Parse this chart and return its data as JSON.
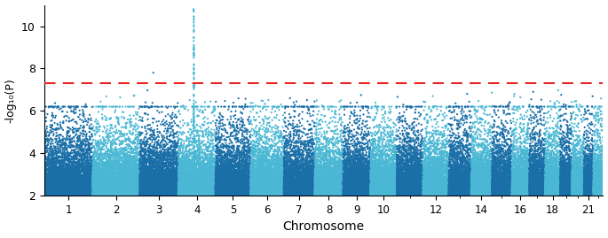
{
  "title": "",
  "xlabel": "Chromosome",
  "ylabel": "-log₁₀(P)",
  "ylim": [
    2,
    11
  ],
  "yticks": [
    2,
    4,
    6,
    8,
    10
  ],
  "significance_line": 7.3,
  "significance_color": "#e82020",
  "chromosomes": [
    1,
    2,
    3,
    4,
    5,
    6,
    7,
    8,
    9,
    10,
    11,
    12,
    13,
    14,
    15,
    16,
    17,
    18,
    19,
    20,
    21,
    22
  ],
  "chrom_labels": [
    "1",
    "2",
    "3",
    "4",
    "5",
    "6",
    "7",
    "8",
    "9",
    "10",
    "12",
    "14",
    "16",
    "18",
    "21"
  ],
  "chrom_label_ids": [
    1,
    2,
    3,
    4,
    5,
    6,
    7,
    8,
    9,
    10,
    12,
    14,
    16,
    18,
    21
  ],
  "color1": "#1a6fa8",
  "color2": "#4ab8d4",
  "background_color": "#ffffff",
  "point_size": 2.5,
  "seed": 12345,
  "figsize": [
    6.85,
    2.69
  ],
  "dpi": 100,
  "chr4_peak_value": 10.8,
  "chr4_secondary_peak": 9.3,
  "chr4_tertiary_peak": 8.9,
  "chrom_sizes": {
    "1": 249,
    "2": 243,
    "3": 198,
    "4": 191,
    "5": 181,
    "6": 171,
    "7": 159,
    "8": 146,
    "9": 141,
    "10": 135,
    "11": 135,
    "12": 133,
    "13": 115,
    "14": 107,
    "15": 102,
    "16": 90,
    "17": 81,
    "18": 78,
    "19": 59,
    "20": 63,
    "21": 48,
    "22": 51
  }
}
